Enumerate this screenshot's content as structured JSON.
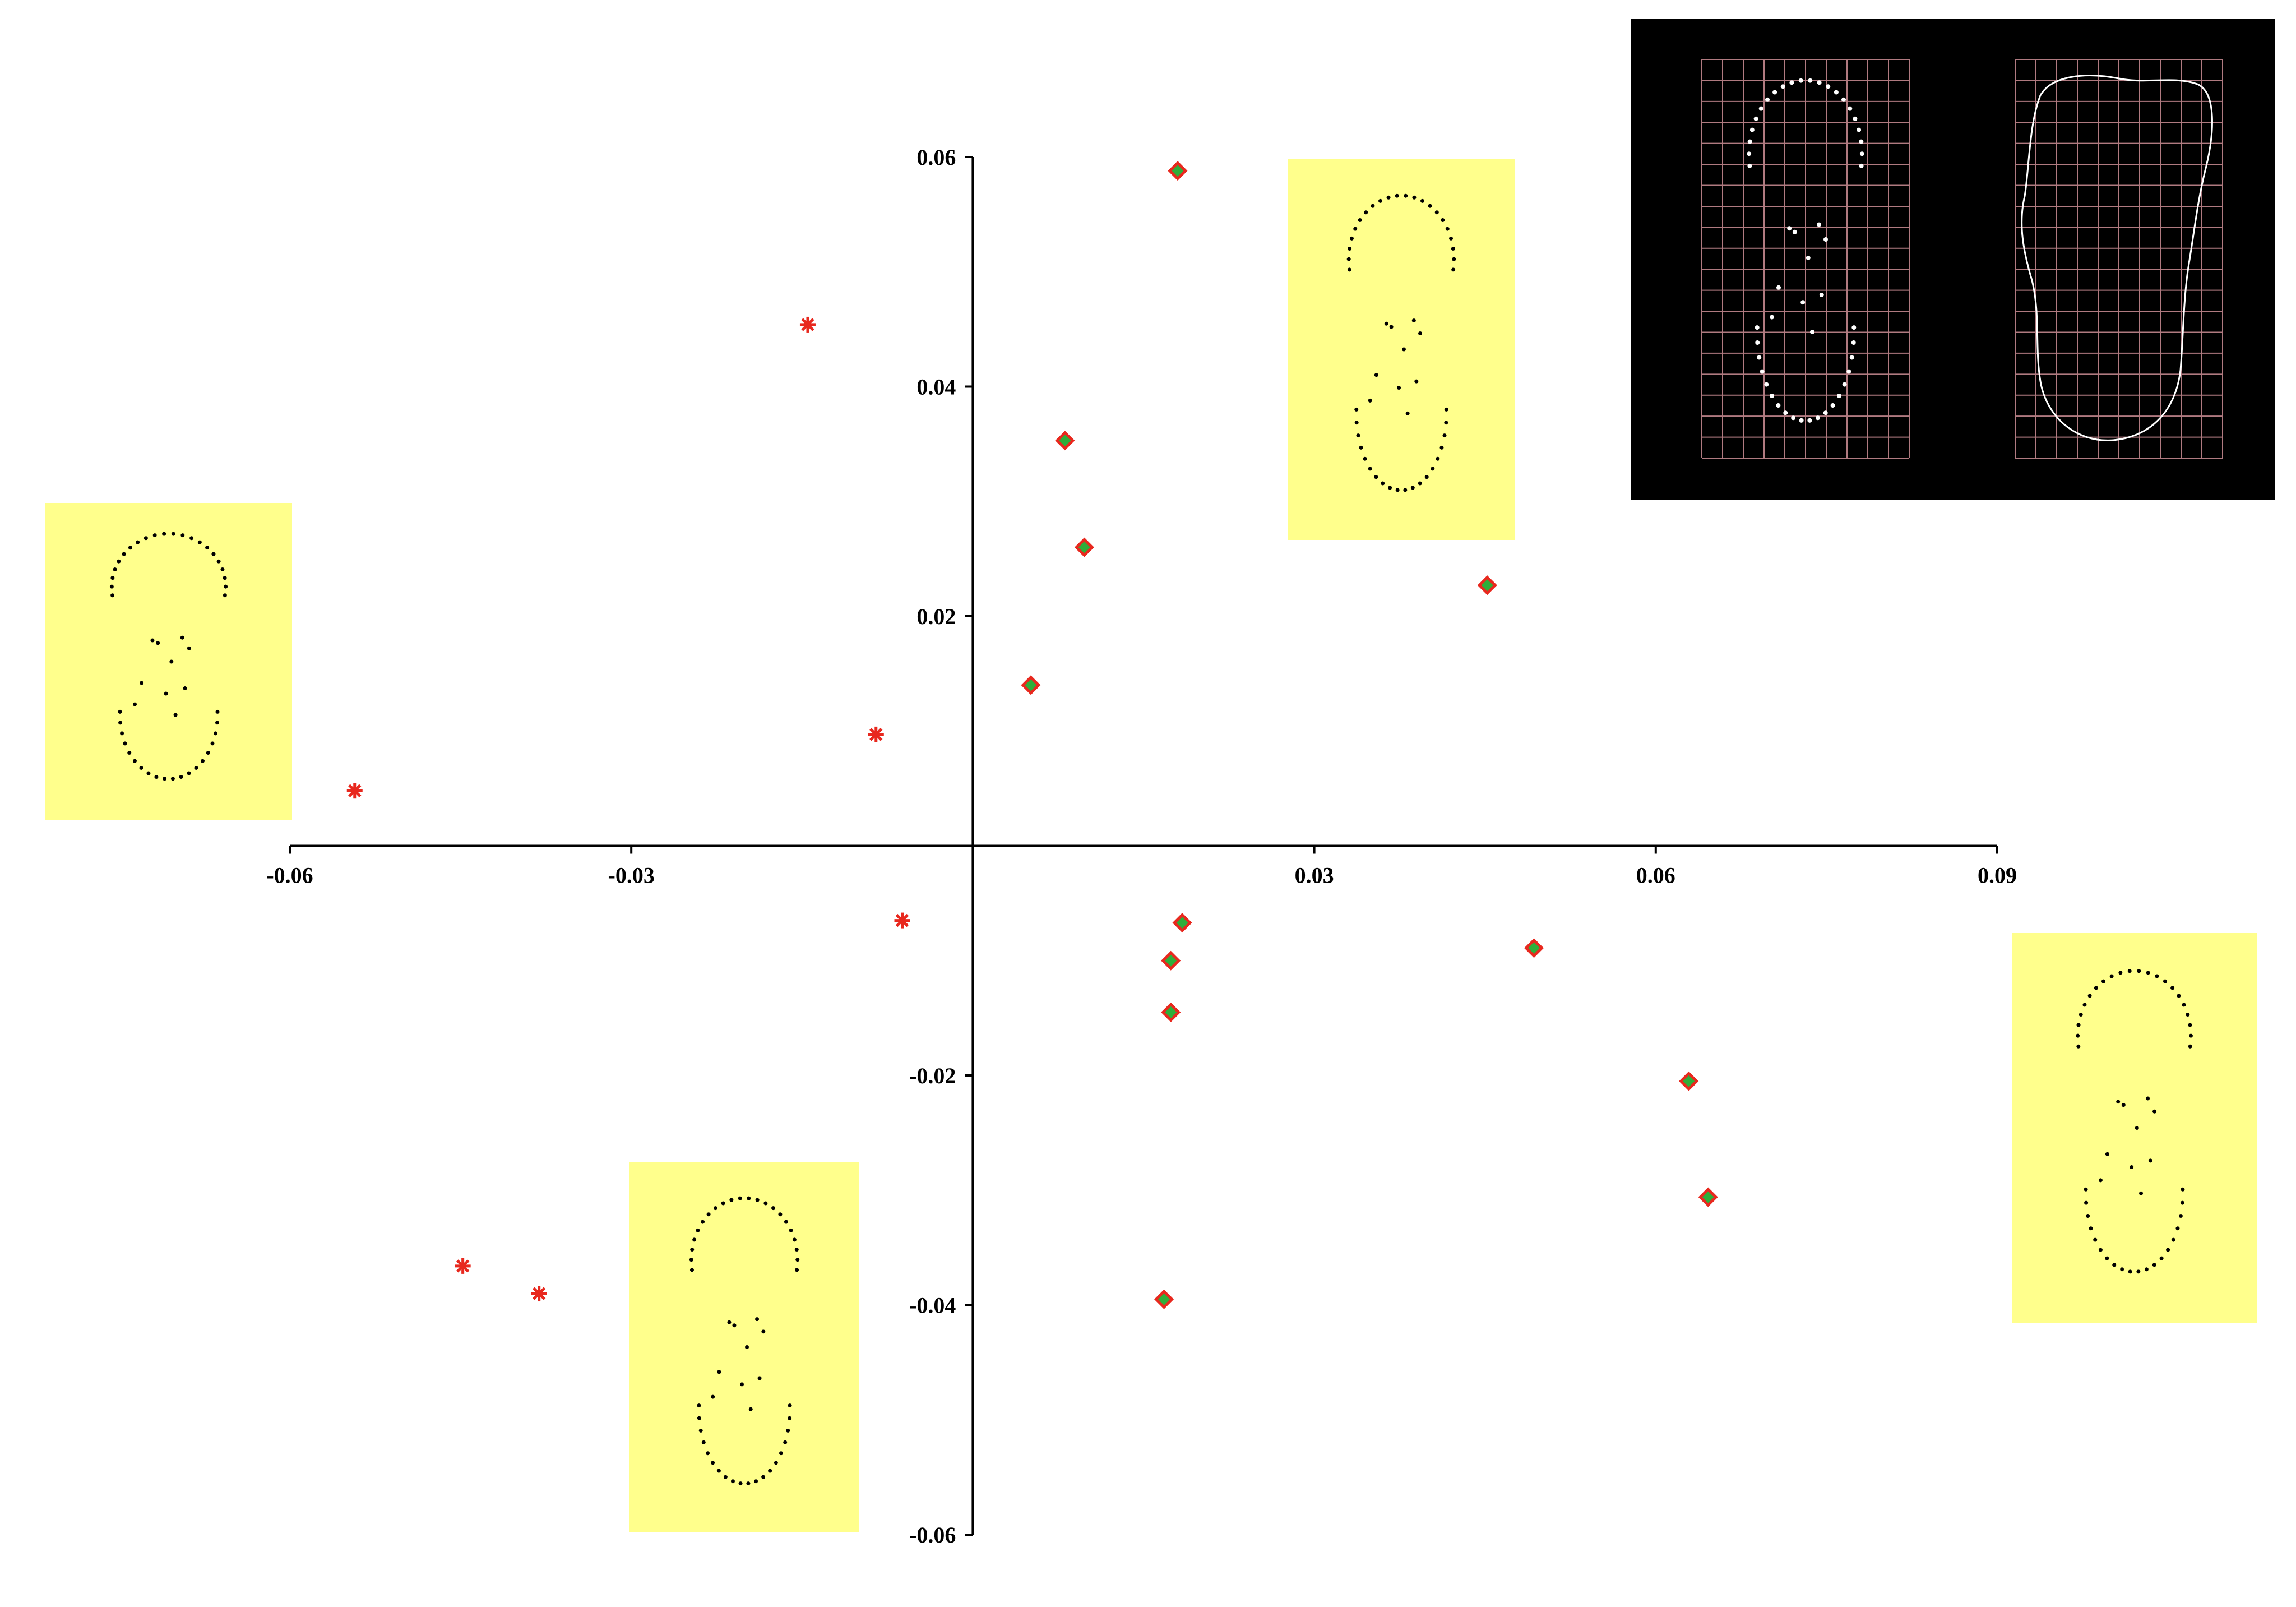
{
  "chart_data": {
    "type": "scatter",
    "title": "",
    "xlabel": "",
    "ylabel": "",
    "xlim": [
      -0.06,
      0.09
    ],
    "ylim": [
      -0.06,
      0.06
    ],
    "x_ticks": [
      "-0.06",
      "-0.03",
      "0.03",
      "0.06",
      "0.09"
    ],
    "y_ticks": [
      "0.06",
      "0.04",
      "0.02",
      "-0.02",
      "-0.04",
      "-0.06"
    ],
    "x_tick_values": [
      -0.06,
      -0.03,
      0.03,
      0.06,
      0.09
    ],
    "y_tick_values": [
      0.06,
      0.04,
      0.02,
      -0.02,
      -0.04,
      -0.06
    ],
    "grid": false,
    "series": [
      {
        "marker": "asterisk",
        "color": "#e8281e",
        "points": [
          {
            "x": -0.0145,
            "y": 0.0454
          },
          {
            "x": -0.0085,
            "y": 0.0097
          },
          {
            "x": -0.0543,
            "y": 0.0048
          },
          {
            "x": -0.0062,
            "y": -0.0065
          },
          {
            "x": -0.0448,
            "y": -0.0366
          },
          {
            "x": -0.0381,
            "y": -0.039
          }
        ]
      },
      {
        "marker": "diamond",
        "color": "#2fae3a",
        "edge_color": "#e8281e",
        "points": [
          {
            "x": 0.018,
            "y": 0.0588
          },
          {
            "x": 0.0081,
            "y": 0.0353
          },
          {
            "x": 0.0098,
            "y": 0.026
          },
          {
            "x": 0.0051,
            "y": 0.014
          },
          {
            "x": 0.0452,
            "y": 0.0227
          },
          {
            "x": 0.0184,
            "y": -0.0067
          },
          {
            "x": 0.0174,
            "y": -0.01
          },
          {
            "x": 0.0174,
            "y": -0.0145
          },
          {
            "x": 0.0493,
            "y": -0.0089
          },
          {
            "x": 0.0629,
            "y": -0.0205
          },
          {
            "x": 0.0646,
            "y": -0.0306
          },
          {
            "x": 0.0168,
            "y": -0.0395
          }
        ]
      }
    ],
    "insets": {
      "background": "#ffff8c",
      "dot_color": "#000000",
      "count": 4
    },
    "reference_panel": {
      "background": "#000000",
      "grid_color": "#b07a80",
      "landmark_color": "#ffffff"
    }
  }
}
